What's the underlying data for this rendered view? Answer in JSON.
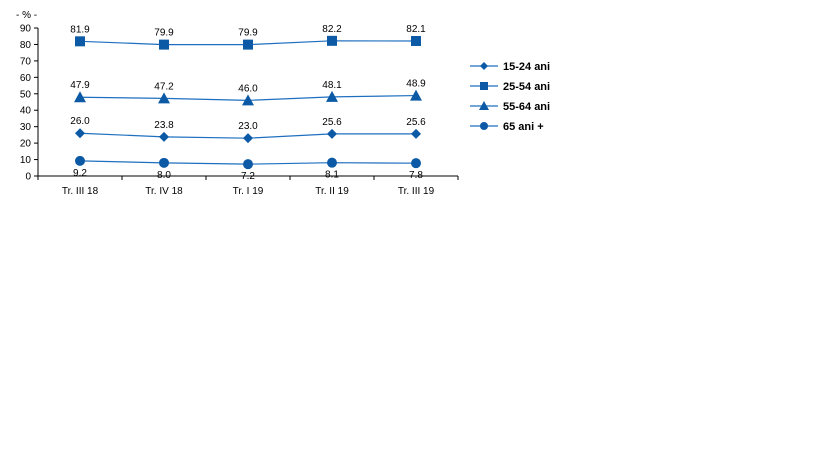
{
  "chart_data": {
    "type": "line",
    "unit_label": "- % -",
    "categories": [
      "Tr. III 18",
      "Tr. IV 18",
      "Tr. I 19",
      "Tr. II 19",
      "Tr. III 19"
    ],
    "ylim": [
      0,
      90
    ],
    "yticks": [
      0,
      10,
      20,
      30,
      40,
      50,
      60,
      70,
      80,
      90
    ],
    "grid": false,
    "legend_position": "right",
    "line_color": "#1f6fc0",
    "marker_color": "#0c5aa6",
    "series": [
      {
        "name": "15-24 ani",
        "marker": "diamond",
        "values": [
          26.0,
          23.8,
          23.0,
          25.6,
          25.6
        ],
        "labels": [
          "26.0",
          "23.8",
          "23.0",
          "25.6",
          "25.6"
        ]
      },
      {
        "name": "25-54 ani",
        "marker": "square",
        "values": [
          81.9,
          79.9,
          79.9,
          82.2,
          82.1
        ],
        "labels": [
          "81.9",
          "79.9",
          "79.9",
          "82.2",
          "82.1"
        ]
      },
      {
        "name": "55-64 ani",
        "marker": "triangle",
        "values": [
          47.9,
          47.2,
          46.0,
          48.1,
          48.9
        ],
        "labels": [
          "47.9",
          "47.2",
          "46.0",
          "48.1",
          "48.9"
        ]
      },
      {
        "name": "65 ani +",
        "marker": "circle",
        "values": [
          9.2,
          8.0,
          7.2,
          8.1,
          7.8
        ],
        "labels": [
          "9.2",
          "8.0",
          "7.2",
          "8.1",
          "7.8"
        ]
      }
    ]
  }
}
